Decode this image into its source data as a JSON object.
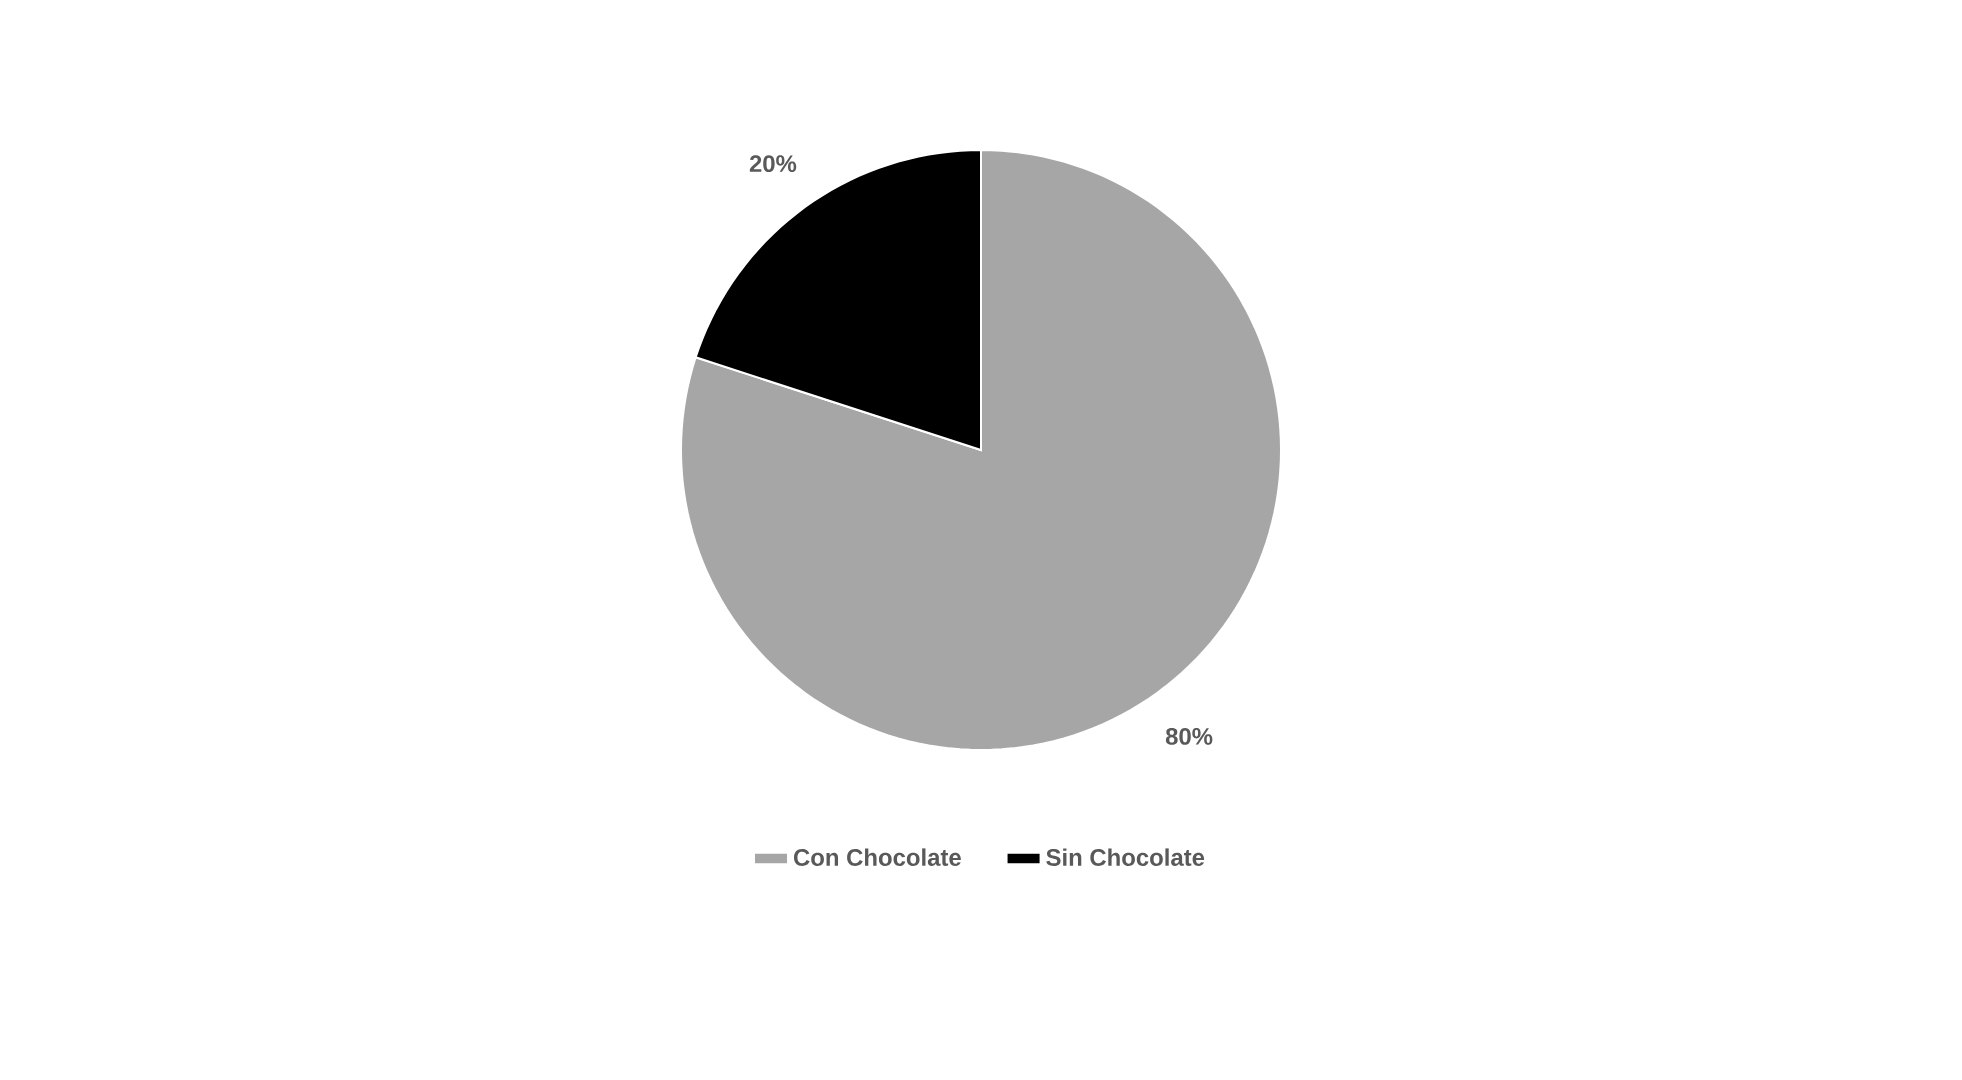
{
  "chart_data": {
    "type": "pie",
    "categories": [
      "Con Chocolate",
      "Sin Chocolate"
    ],
    "values": [
      80,
      20
    ],
    "colors": [
      "#a6a6a6",
      "#000000"
    ],
    "value_labels": [
      "80%",
      "20%"
    ],
    "legend": "bottom"
  }
}
